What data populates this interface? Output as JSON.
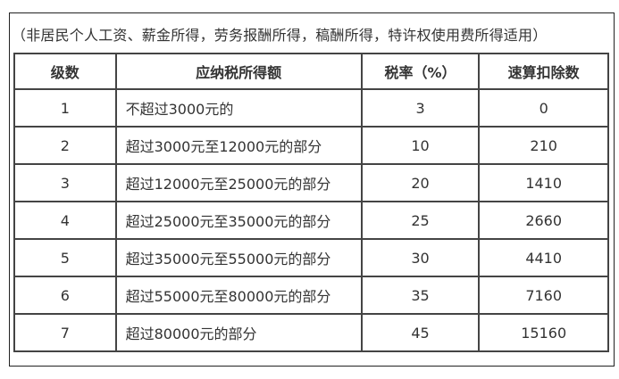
{
  "caption": "（非居民个人工资、薪金所得，劳务报酬所得，稿酬所得，特许权使用费所得适用）",
  "headers": [
    "级数",
    "应纳税所得额",
    "税率（%）",
    "速算扣除数"
  ],
  "rows": [
    [
      "1",
      "不超过3000元的",
      "3",
      "0"
    ],
    [
      "2",
      "超过3000元至12000元的部分",
      "10",
      "210"
    ],
    [
      "3",
      "超过12000元至25000元的部分",
      "20",
      "1410"
    ],
    [
      "4",
      "超过25000元至35000元的部分",
      "25",
      "2660"
    ],
    [
      "5",
      "超过35000元至55000元的部分",
      "30",
      "4410"
    ],
    [
      "6",
      "超过55000元至80000元的部分",
      "35",
      "7160"
    ],
    [
      "7",
      "超过80000元的部分",
      "45",
      "15160"
    ]
  ]
}
